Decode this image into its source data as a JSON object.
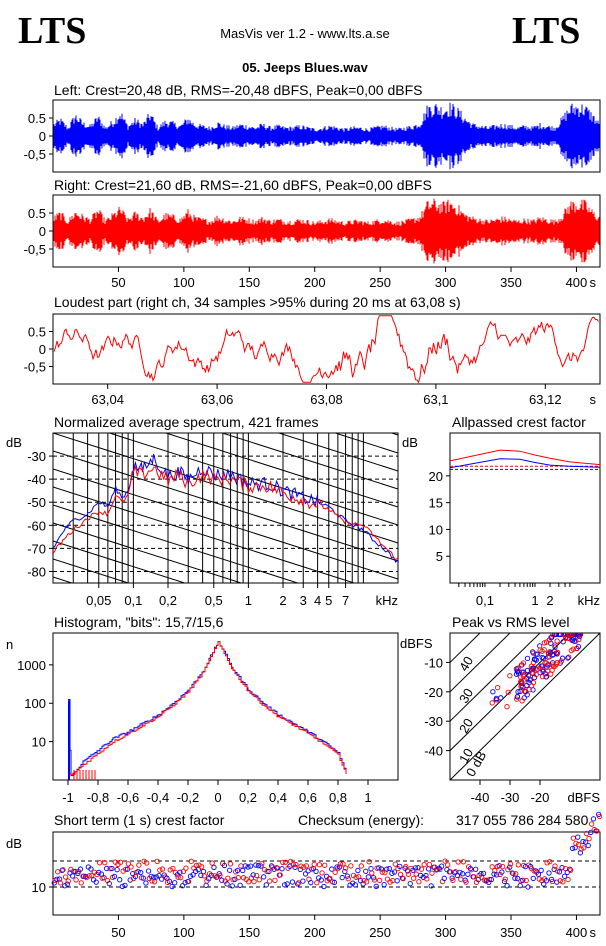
{
  "header": {
    "logo_left": "LTS",
    "logo_right": "LTS",
    "app_title": "MasVis ver 1.2 - www.lts.a.se",
    "file_name": "05. Jeeps Blues.wav"
  },
  "colors": {
    "left": "#0000ff",
    "right": "#ff0000",
    "grid": "#000000"
  },
  "chart_data": [
    {
      "id": "left-waveform",
      "type": "line",
      "title": "Left: Crest=20,48 dB, RMS=-20,48 dBFS, Peak=0,00 dBFS",
      "yticks": [
        "0.5",
        "0",
        "-0,5"
      ],
      "ylim": [
        -1,
        1
      ],
      "xlim": [
        0,
        418
      ],
      "envelope": [
        0.4,
        0.55,
        0.3,
        0.7,
        0.45,
        0.35,
        0.65,
        0.3,
        0.5,
        0.8,
        0.35,
        0.55,
        0.4,
        0.75,
        0.3,
        0.5,
        0.45,
        0.35,
        0.6,
        0.4,
        0.35,
        0.3,
        0.45,
        0.35,
        0.3,
        0.4,
        0.35,
        0.3,
        0.4,
        0.3,
        0.35,
        0.3,
        0.3,
        0.35,
        0.3,
        0.25,
        0.3,
        0.35,
        0.3,
        0.25,
        0.3,
        0.3,
        0.25,
        0.3,
        0.35,
        0.3,
        0.25,
        0.3,
        0.35,
        0.45,
        0.95,
        1.0,
        0.9,
        1.0,
        0.85,
        0.6,
        0.4,
        0.35,
        0.3,
        0.35,
        0.4,
        0.35,
        0.3,
        0.35,
        0.3,
        0.4,
        0.35,
        0.3,
        0.6,
        0.95,
        1.0,
        0.95,
        0.7,
        0.4
      ]
    },
    {
      "id": "right-waveform",
      "type": "line",
      "title": "Right: Crest=21,60 dB, RMS=-21,60 dBFS, Peak=0,00 dBFS",
      "yticks": [
        "0.5",
        "0",
        "-0,5"
      ],
      "ylim": [
        -1,
        1
      ],
      "xlim": [
        0,
        418
      ],
      "xticks": [
        50,
        100,
        150,
        200,
        250,
        300,
        350,
        400
      ],
      "xunit": "s",
      "envelope": [
        0.45,
        0.6,
        0.35,
        0.65,
        0.5,
        0.4,
        0.7,
        0.35,
        0.55,
        0.75,
        0.4,
        0.6,
        0.45,
        0.7,
        0.35,
        0.55,
        0.5,
        0.4,
        0.65,
        0.45,
        0.4,
        0.35,
        0.5,
        0.4,
        0.35,
        0.45,
        0.4,
        0.35,
        0.45,
        0.35,
        0.4,
        0.35,
        0.35,
        0.4,
        0.35,
        0.3,
        0.35,
        0.4,
        0.35,
        0.3,
        0.35,
        0.35,
        0.3,
        0.35,
        0.4,
        0.35,
        0.3,
        0.35,
        0.4,
        0.5,
        0.9,
        0.95,
        0.85,
        0.95,
        0.8,
        0.55,
        0.45,
        0.4,
        0.35,
        0.4,
        0.45,
        0.4,
        0.35,
        0.4,
        0.35,
        0.45,
        0.4,
        0.35,
        0.55,
        0.9,
        0.95,
        0.9,
        0.65,
        0.45
      ]
    },
    {
      "id": "loudest-part",
      "type": "line",
      "title": "Loudest part (right ch, 34 samples >95% during 20 ms at 63,08 s)",
      "yticks": [
        "0.5",
        "0",
        "-0,5"
      ],
      "ylim": [
        -1,
        1
      ],
      "xlim": [
        63.03,
        63.13
      ],
      "xticks": [
        "63,04",
        "63,06",
        "63,08",
        "63,1",
        "63,12"
      ],
      "xunit": "s"
    },
    {
      "id": "average-spectrum",
      "type": "line",
      "title": "Normalized average spectrum, 421 frames",
      "ylabel": "dB",
      "yticks": [
        "-30",
        "-40",
        "-50",
        "-60",
        "-70",
        "-80"
      ],
      "xticks": [
        "0,05",
        "0,1",
        "0,2",
        "0,5",
        "1",
        "2",
        "3",
        "4",
        "5",
        "7"
      ],
      "xunit": "kHz",
      "series": [
        {
          "name": "left",
          "x": [
            0.02,
            0.025,
            0.03,
            0.04,
            0.05,
            0.06,
            0.07,
            0.08,
            0.09,
            0.1,
            0.12,
            0.15,
            0.2,
            0.25,
            0.3,
            0.4,
            0.5,
            0.7,
            1,
            1.5,
            2,
            3,
            4,
            5,
            7,
            10,
            12,
            15,
            20
          ],
          "y": [
            -70,
            -62,
            -58,
            -55,
            -50,
            -52,
            -44,
            -48,
            -45,
            -34,
            -36,
            -31,
            -39,
            -37,
            -40,
            -35,
            -38,
            -38,
            -42,
            -42,
            -45,
            -48,
            -50,
            -52,
            -58,
            -62,
            -66,
            -70,
            -76
          ]
        },
        {
          "name": "right",
          "x": [
            0.02,
            0.025,
            0.03,
            0.04,
            0.05,
            0.06,
            0.07,
            0.08,
            0.09,
            0.1,
            0.12,
            0.15,
            0.2,
            0.25,
            0.3,
            0.4,
            0.5,
            0.7,
            1,
            1.5,
            2,
            3,
            4,
            5,
            7,
            10,
            12,
            15,
            20
          ],
          "y": [
            -72,
            -66,
            -62,
            -57,
            -54,
            -55,
            -47,
            -50,
            -47,
            -37,
            -38,
            -35,
            -41,
            -38,
            -42,
            -38,
            -40,
            -40,
            -43,
            -43,
            -46,
            -49,
            -51,
            -53,
            -59,
            -60,
            -64,
            -69,
            -75
          ]
        }
      ]
    },
    {
      "id": "allpassed-crest",
      "type": "line",
      "title": "Allpassed crest factor",
      "ylabel": "dB",
      "yticks": [
        "20",
        "15",
        "10",
        "5"
      ],
      "ylim": [
        0,
        25
      ],
      "xticks": [
        "0,1",
        "1",
        "2"
      ],
      "xunit": "kHz",
      "series": [
        {
          "name": "left",
          "x": [
            0.02,
            0.2,
            0.5,
            1,
            2,
            5,
            20
          ],
          "y": [
            21.5,
            23.2,
            23.1,
            22.5,
            22.0,
            21.8,
            21.6
          ]
        },
        {
          "name": "right",
          "x": [
            0.02,
            0.2,
            0.5,
            1,
            2,
            5,
            20
          ],
          "y": [
            22.8,
            24.8,
            24.6,
            23.9,
            23.3,
            22.6,
            22.1
          ]
        }
      ],
      "reference_lines": [
        {
          "name": "left",
          "y": 21.2
        },
        {
          "name": "right",
          "y": 21.8
        }
      ]
    },
    {
      "id": "histogram",
      "type": "line",
      "title": "Histogram, \"bits\": 15,7/15,6",
      "ylabel": "n",
      "yticks": [
        "1000",
        "100",
        "10"
      ],
      "yscale": "log",
      "xticks": [
        "-1",
        "-0,8",
        "-0,6",
        "-0,4",
        "-0,2",
        "0",
        "0,2",
        "0,4",
        "0,6",
        "0,8",
        "1"
      ],
      "series": [
        {
          "name": "left",
          "x": [
            -1.0,
            -0.98,
            -0.9,
            -0.8,
            -0.7,
            -0.6,
            -0.5,
            -0.4,
            -0.3,
            -0.2,
            -0.1,
            -0.05,
            0,
            0.05,
            0.1,
            0.2,
            0.3,
            0.4,
            0.5,
            0.6,
            0.7,
            0.8,
            0.84,
            0.86
          ],
          "y": [
            120,
            1.3,
            3,
            6,
            12,
            18,
            30,
            50,
            100,
            220,
            700,
            1700,
            4000,
            1800,
            750,
            230,
            100,
            50,
            30,
            18,
            10,
            5,
            2,
            1.2
          ]
        },
        {
          "name": "right",
          "x": [
            -1.0,
            -0.98,
            -0.9,
            -0.8,
            -0.7,
            -0.6,
            -0.5,
            -0.4,
            -0.3,
            -0.2,
            -0.1,
            -0.05,
            0,
            0.05,
            0.1,
            0.2,
            0.3,
            0.4,
            0.5,
            0.6,
            0.7,
            0.8,
            0.84,
            0.86
          ],
          "y": [
            1.5,
            1.3,
            2.5,
            5,
            10,
            16,
            27,
            45,
            90,
            200,
            650,
            1600,
            3800,
            1700,
            700,
            210,
            90,
            45,
            27,
            16,
            9,
            4.5,
            2,
            1.2
          ]
        }
      ]
    },
    {
      "id": "peak-vs-rms",
      "type": "scatter",
      "title": "Peak vs RMS level",
      "ylabel": "dBFS",
      "xlabel": "dBFS",
      "yticks": [
        "-10",
        "-20",
        "-30",
        "-40"
      ],
      "xticks": [
        "-40",
        "-30",
        "-20"
      ],
      "diagonal_labels": [
        "40",
        "30",
        "20",
        "10",
        "0 dB"
      ],
      "xlim": [
        -50,
        0
      ],
      "ylim": [
        -50,
        0
      ]
    },
    {
      "id": "short-term-crest",
      "type": "scatter",
      "title": "Short term (1 s) crest factor",
      "ylabel": "dB",
      "yticks": [
        "10"
      ],
      "xticks": [
        50,
        100,
        150,
        200,
        250,
        300,
        350,
        400
      ],
      "xunit": "s",
      "xlim": [
        0,
        418
      ]
    }
  ],
  "checksum": {
    "label": "Checksum (energy):",
    "value": "317 055 786 284 580"
  }
}
